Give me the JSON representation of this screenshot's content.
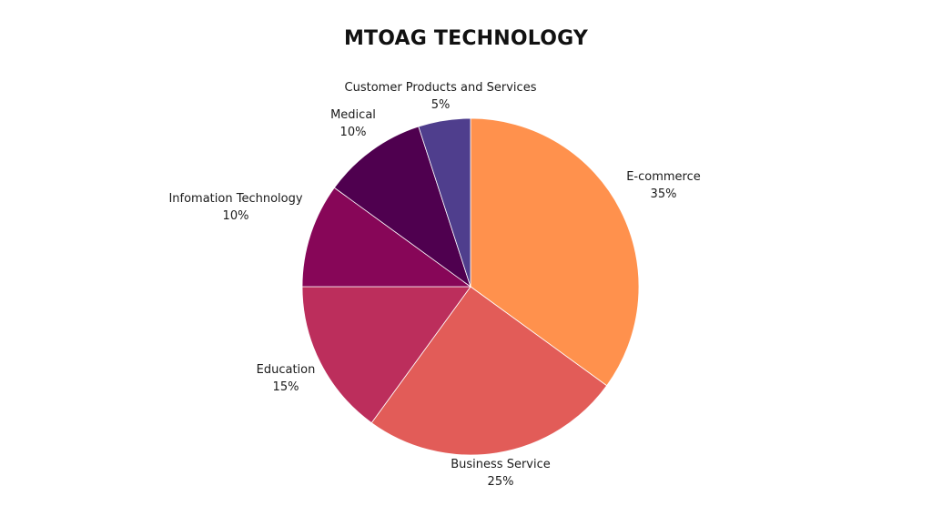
{
  "chart_data": {
    "type": "pie",
    "title": "MTOAG TECHNOLOGY",
    "slices": [
      {
        "label": "E-commerce",
        "value": 35,
        "value_label": "35%",
        "color": "#FF914D"
      },
      {
        "label": "Business Service",
        "value": 25,
        "value_label": "25%",
        "color": "#E25C58"
      },
      {
        "label": "Education",
        "value": 15,
        "value_label": "15%",
        "color": "#BC2E5C"
      },
      {
        "label": "Infomation Technology",
        "value": 10,
        "value_label": "10%",
        "color": "#870658"
      },
      {
        "label": "Medical",
        "value": 10,
        "value_label": "10%",
        "color": "#4F004F"
      },
      {
        "label": "Customer Products and Services",
        "value": 5,
        "value_label": "5%",
        "color": "#4F3E8D"
      }
    ],
    "start": "12 o'clock",
    "direction": "clockwise",
    "legend": "none"
  }
}
